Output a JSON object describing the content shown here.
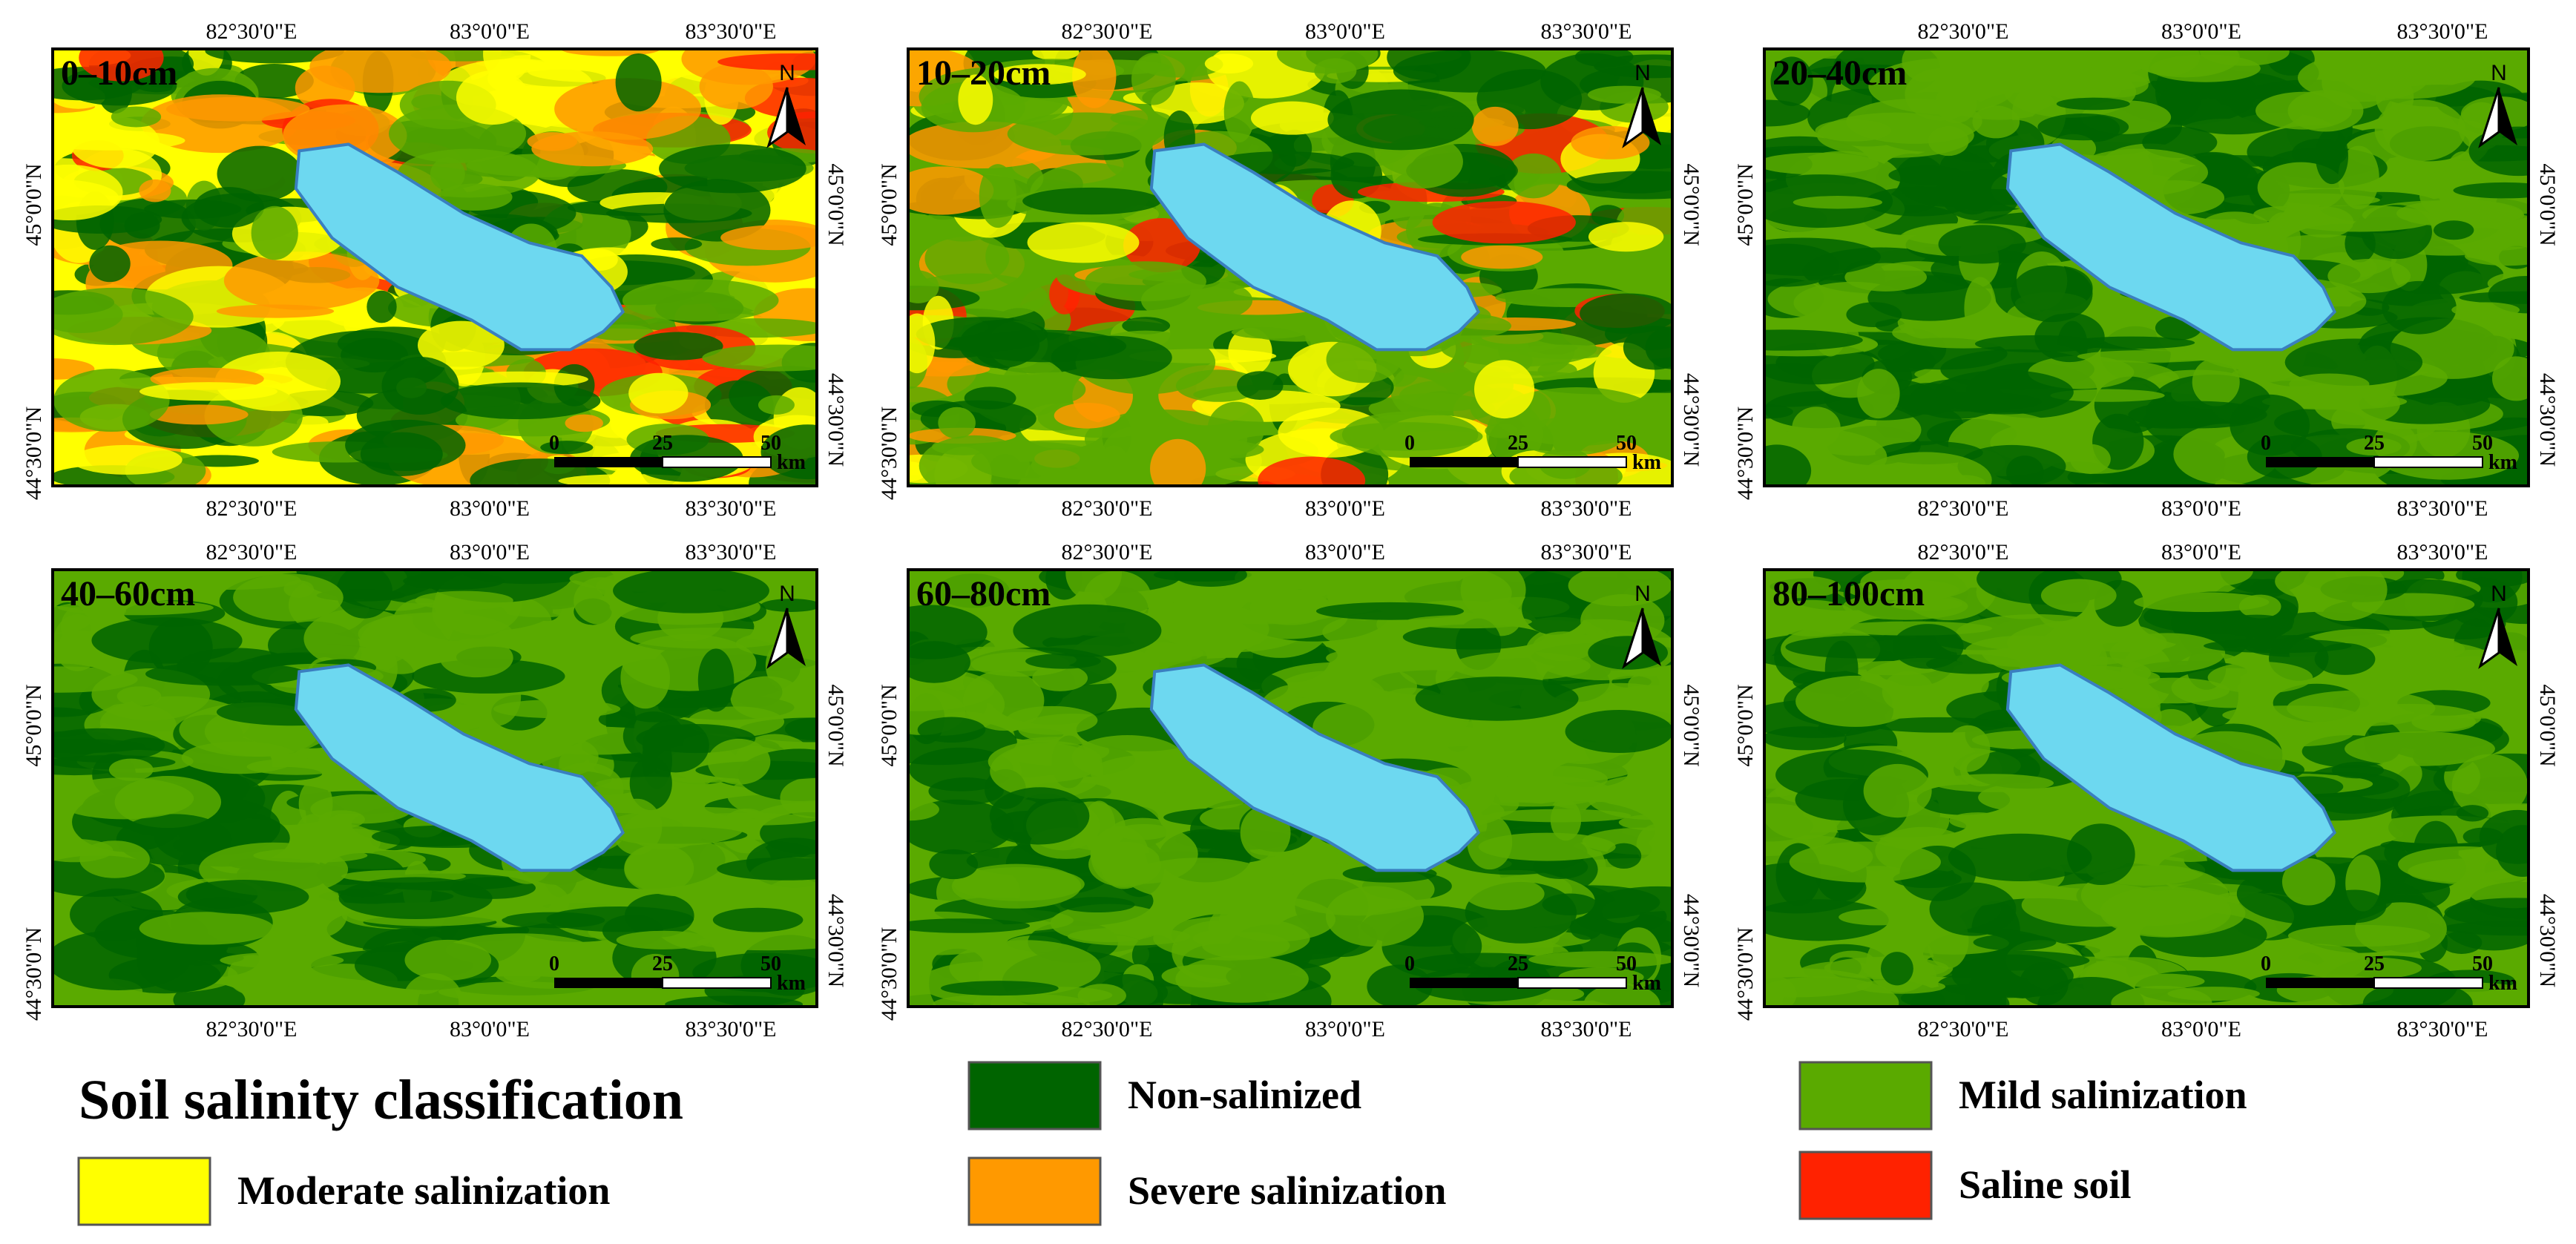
{
  "panels": [
    {
      "label": "0–10cm"
    },
    {
      "label": "10–20cm"
    },
    {
      "label": "20–40cm"
    },
    {
      "label": "40–60cm"
    },
    {
      "label": "60–80cm"
    },
    {
      "label": "80–100cm"
    }
  ],
  "x_labels": [
    "82°30'0\"E",
    "83°0'0\"E",
    "83°30'0\"E"
  ],
  "y_labels": [
    "45°0'0\"N",
    "44°30'0\"N"
  ],
  "north": "N",
  "scale_labels": [
    "0",
    "25",
    "50"
  ],
  "scale_unit": "km",
  "legend": {
    "title": "Soil salinity classification",
    "items": [
      {
        "label": "Non-salinized",
        "color": "#006400"
      },
      {
        "label": "Mild salinization",
        "color": "#5aaa00"
      },
      {
        "label": "Moderate salinization",
        "color": "#ffff00"
      },
      {
        "label": "Severe salinization",
        "color": "#ff9900"
      },
      {
        "label": "Saline soil",
        "color": "#ff2200"
      }
    ]
  }
}
